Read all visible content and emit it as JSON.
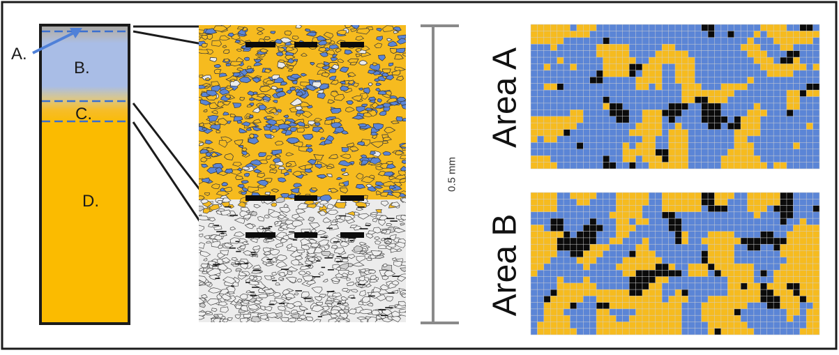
{
  "column_labels": {
    "a": "A.",
    "b": "B.",
    "c": "C.",
    "d": "D."
  },
  "scale_bar_label": "0.5 mm",
  "area_a_title": "Area A",
  "area_b_title": "Area B",
  "colors": {
    "blue": "#5b85d6",
    "orange": "#f6bb1f",
    "black": "#0b0b0b",
    "light_gray": "#ececec",
    "pale_blue": "#a9bde6",
    "dash_blue": "#3a6fd0",
    "scale_gray": "#8a8a8a",
    "frame": "#1b1b1b"
  }
}
